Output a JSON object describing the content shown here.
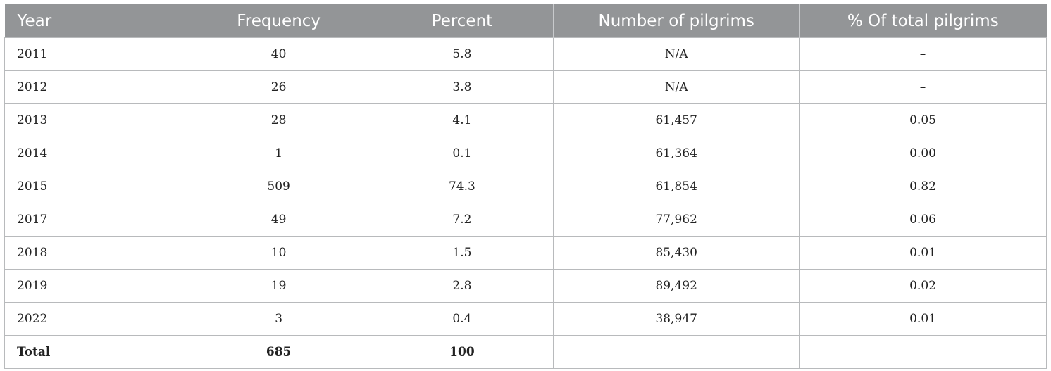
{
  "table": {
    "headers": [
      "Year",
      "Frequency",
      "Percent",
      "Number of pilgrims",
      "% Of total pilgrims"
    ],
    "rows": [
      [
        "2011",
        "40",
        "5.8",
        "N/A",
        "–"
      ],
      [
        "2012",
        "26",
        "3.8",
        "N/A",
        "–"
      ],
      [
        "2013",
        "28",
        "4.1",
        "61,457",
        "0.05"
      ],
      [
        "2014",
        "1",
        "0.1",
        "61,364",
        "0.00"
      ],
      [
        "2015",
        "509",
        "74.3",
        "61,854",
        "0.82"
      ],
      [
        "2017",
        "49",
        "7.2",
        "77,962",
        "0.06"
      ],
      [
        "2018",
        "10",
        "1.5",
        "85,430",
        "0.01"
      ],
      [
        "2019",
        "19",
        "2.8",
        "89,492",
        "0.02"
      ],
      [
        "2022",
        "3",
        "0.4",
        "38,947",
        "0.01"
      ]
    ],
    "total": [
      "Total",
      "685",
      "100",
      "",
      ""
    ]
  },
  "colors": {
    "header_bg": "#939597",
    "header_text": "#ffffff",
    "border": "#b8babc"
  }
}
